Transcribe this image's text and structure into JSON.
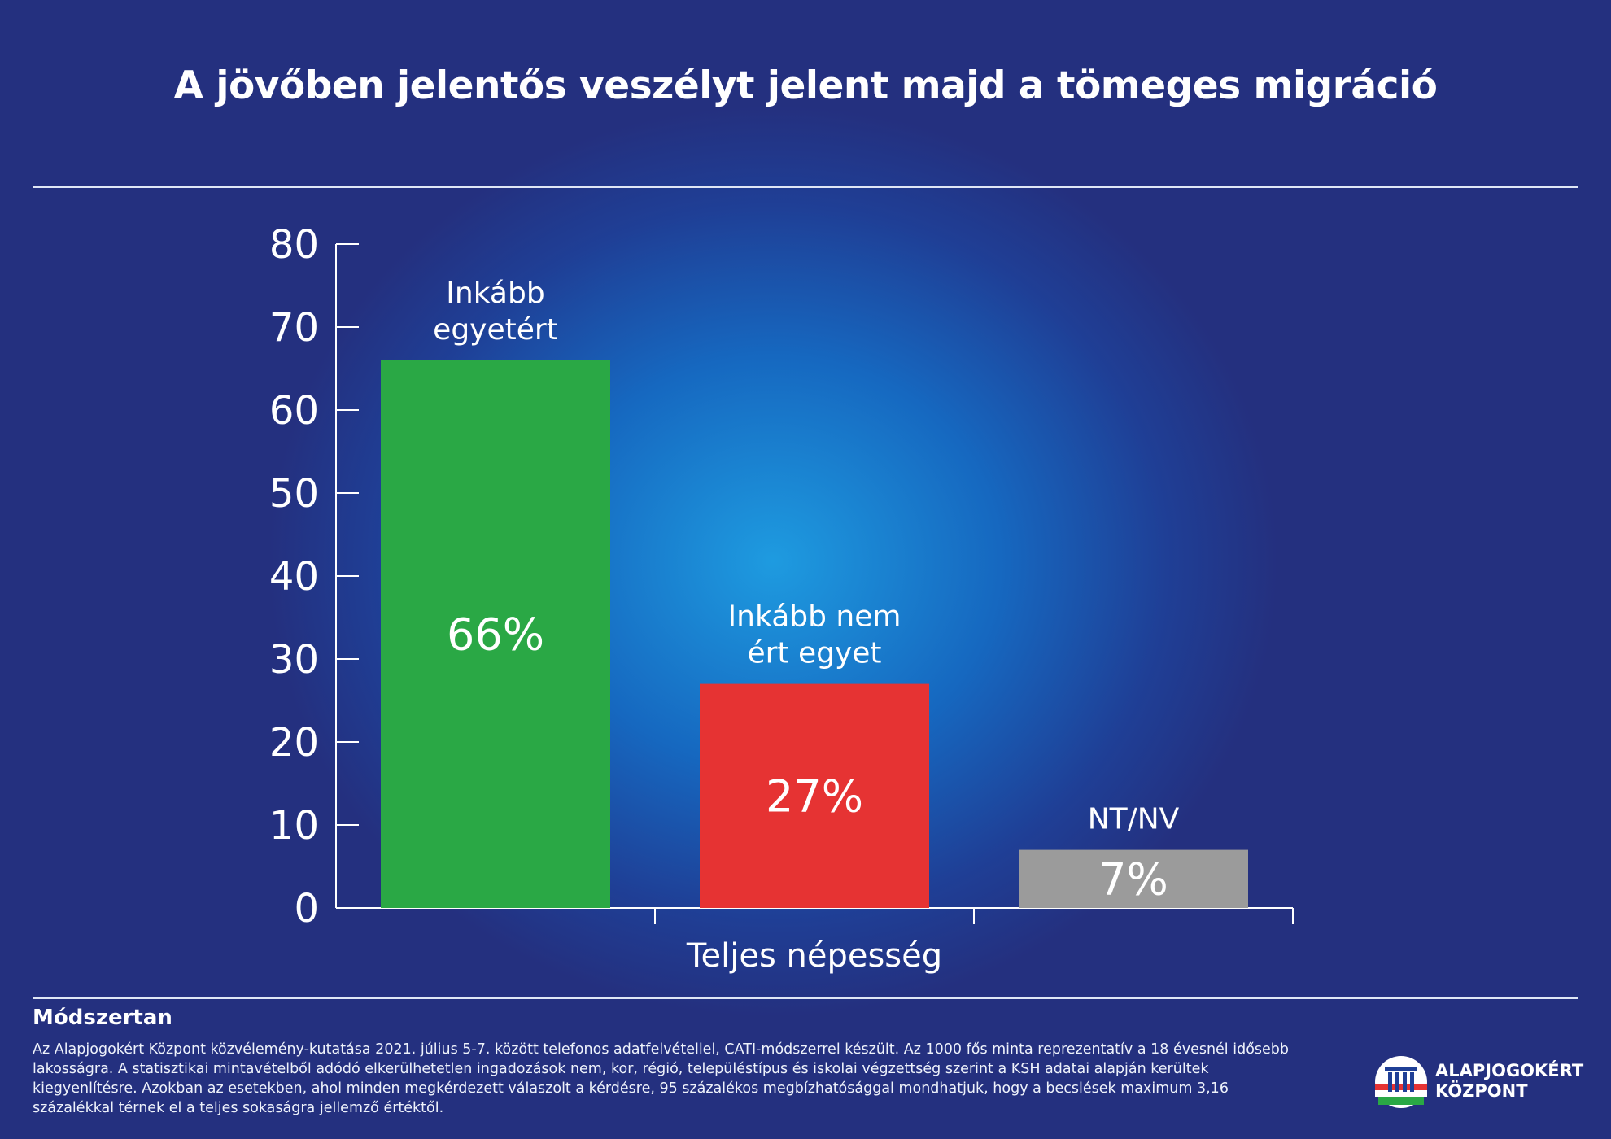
{
  "title": "A jövőben jelentős veszélyt jelent majd a tömeges migráció",
  "chart_data": {
    "type": "bar",
    "categories": [
      "Inkább egyetért",
      "Inkább nem ért egyet",
      "NT/NV"
    ],
    "category_lines": [
      [
        "Inkább",
        "egyetért"
      ],
      [
        "Inkább nem",
        "ért egyet"
      ],
      [
        "NT/NV"
      ]
    ],
    "values": [
      66,
      27,
      7
    ],
    "value_labels": [
      "66%",
      "27%",
      "7%"
    ],
    "colors": [
      "#2aa845",
      "#e63333",
      "#9b9b9b"
    ],
    "xlabel": "Teljes népesség",
    "ylabel": "",
    "ylim": [
      0,
      80
    ],
    "yticks": [
      0,
      10,
      20,
      30,
      40,
      50,
      60,
      70,
      80
    ],
    "grid": false,
    "legend": "none"
  },
  "methodology": {
    "title": "Módszertan",
    "text": "Az Alapjogokért Központ közvélemény-kutatása 2021. július 5-7. között telefonos adatfelvétellel, CATI-módszerrel készült. Az 1000 fős minta reprezentatív a 18 évesnél idősebb lakosságra. A statisztikai mintavételből adódó elkerülhetetlen ingadozások nem, kor, régió, településtípus és iskolai végzettség szerint a KSH adatai alapján kerültek kiegyenlítésre. Azokban az esetekben, ahol minden megkérdezett válaszolt a kérdésre, 95 százalékos megbízhatósággal mondhatjuk, hogy a becslések maximum 3,16 százalékkal térnek el a teljes sokaságra jellemző értéktől."
  },
  "logo": {
    "line1": "ALAPJOGOKÉRT",
    "line2": "KÖZPONT",
    "icon": "pillar-flag-logo-icon"
  }
}
